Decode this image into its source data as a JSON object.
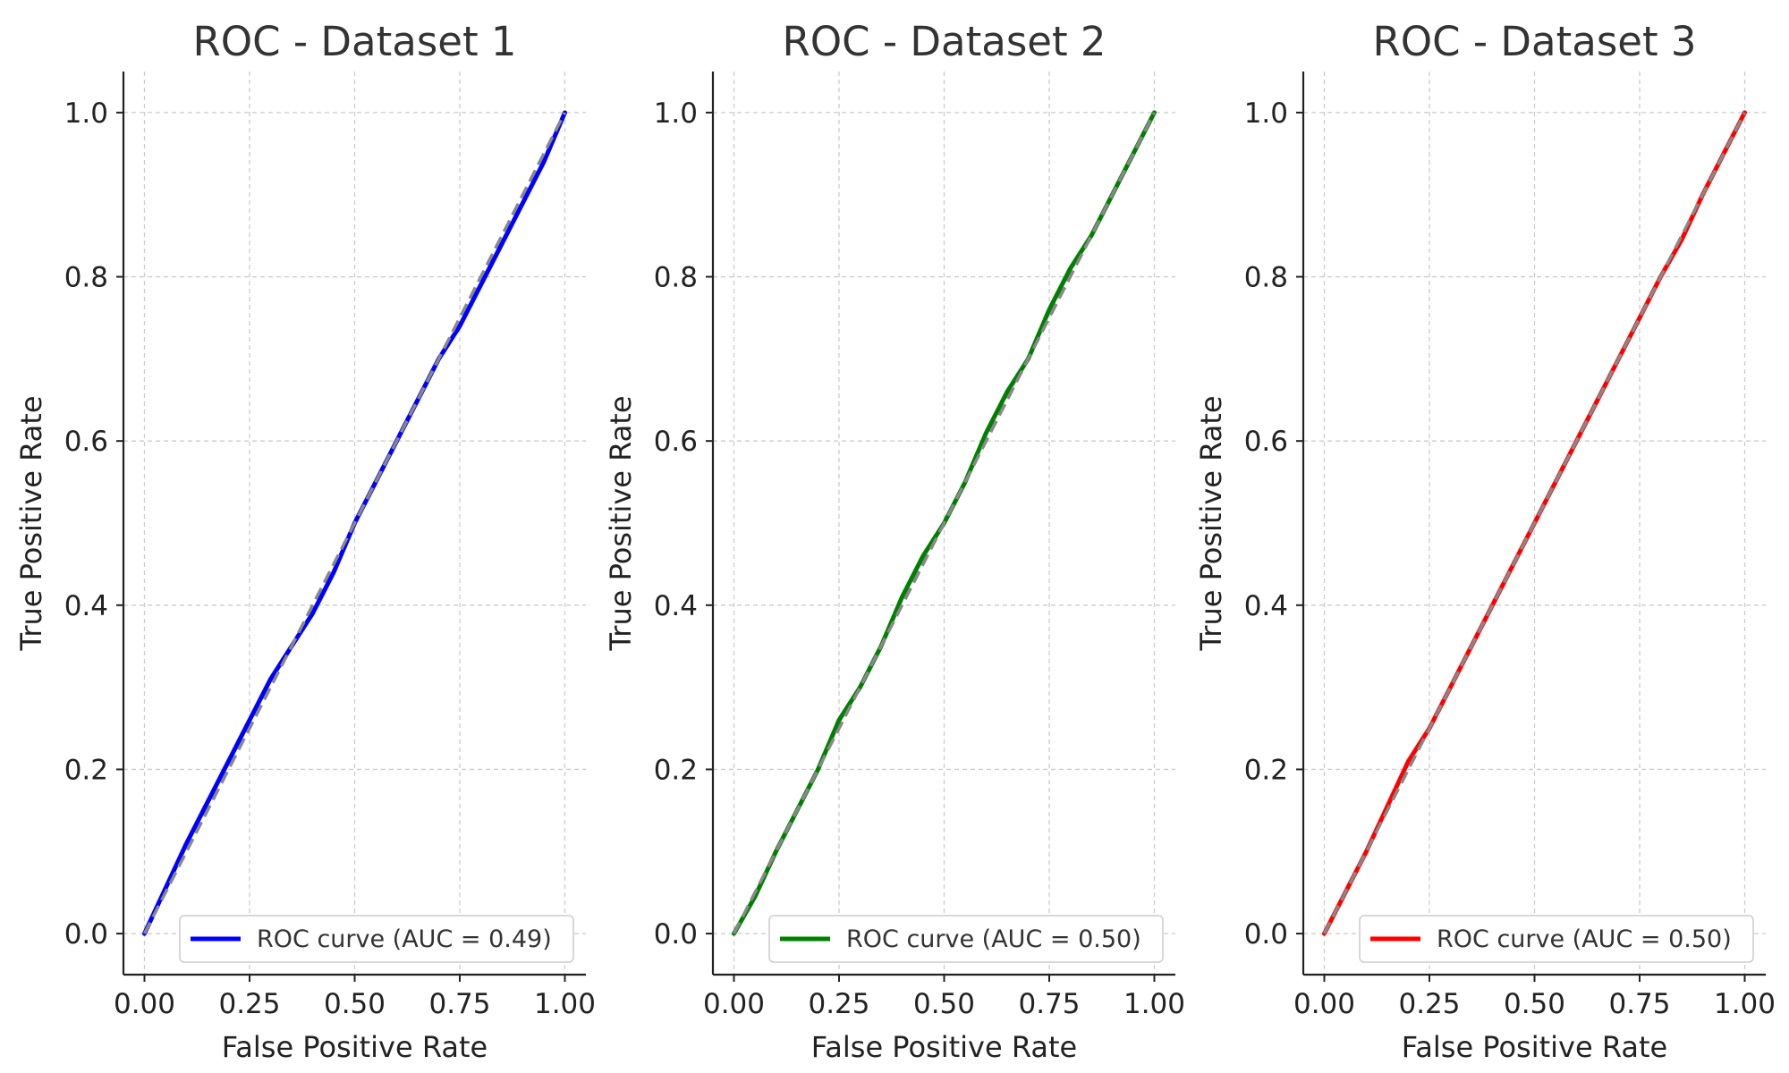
{
  "chart_data": [
    {
      "type": "line",
      "title": "ROC - Dataset 1",
      "xlabel": "False Positive Rate",
      "ylabel": "True Positive Rate",
      "xlim": [
        -0.05,
        1.05
      ],
      "ylim": [
        -0.05,
        1.05
      ],
      "xticks": [
        "0.00",
        "0.25",
        "0.50",
        "0.75",
        "1.00"
      ],
      "yticks": [
        "0.0",
        "0.2",
        "0.4",
        "0.6",
        "0.8",
        "1.0"
      ],
      "grid": true,
      "legend_position": "bottom-right",
      "series": [
        {
          "name": "ROC curve (AUC = 0.49)",
          "color": "#0000ff",
          "x": [
            0.0,
            0.05,
            0.1,
            0.15,
            0.2,
            0.25,
            0.3,
            0.35,
            0.4,
            0.45,
            0.5,
            0.55,
            0.6,
            0.65,
            0.7,
            0.75,
            0.8,
            0.85,
            0.9,
            0.95,
            1.0
          ],
          "y": [
            0.0,
            0.055,
            0.11,
            0.16,
            0.21,
            0.26,
            0.31,
            0.35,
            0.39,
            0.44,
            0.5,
            0.55,
            0.6,
            0.65,
            0.7,
            0.74,
            0.79,
            0.84,
            0.89,
            0.94,
            1.0
          ]
        },
        {
          "name": "",
          "color": "#888888",
          "dashed": true,
          "x": [
            0.0,
            1.0
          ],
          "y": [
            0.0,
            1.0
          ]
        }
      ]
    },
    {
      "type": "line",
      "title": "ROC - Dataset 2",
      "xlabel": "False Positive Rate",
      "ylabel": "True Positive Rate",
      "xlim": [
        -0.05,
        1.05
      ],
      "ylim": [
        -0.05,
        1.05
      ],
      "xticks": [
        "0.00",
        "0.25",
        "0.50",
        "0.75",
        "1.00"
      ],
      "yticks": [
        "0.0",
        "0.2",
        "0.4",
        "0.6",
        "0.8",
        "1.0"
      ],
      "grid": true,
      "legend_position": "bottom-right",
      "series": [
        {
          "name": "ROC curve (AUC = 0.50)",
          "color": "#008000",
          "x": [
            0.0,
            0.05,
            0.1,
            0.15,
            0.2,
            0.25,
            0.3,
            0.35,
            0.4,
            0.45,
            0.5,
            0.55,
            0.6,
            0.65,
            0.7,
            0.75,
            0.8,
            0.85,
            0.9,
            0.95,
            1.0
          ],
          "y": [
            0.0,
            0.045,
            0.1,
            0.15,
            0.2,
            0.26,
            0.3,
            0.35,
            0.41,
            0.46,
            0.5,
            0.55,
            0.61,
            0.66,
            0.7,
            0.76,
            0.81,
            0.85,
            0.9,
            0.95,
            1.0
          ]
        },
        {
          "name": "",
          "color": "#888888",
          "dashed": true,
          "x": [
            0.0,
            1.0
          ],
          "y": [
            0.0,
            1.0
          ]
        }
      ]
    },
    {
      "type": "line",
      "title": "ROC - Dataset 3",
      "xlabel": "False Positive Rate",
      "ylabel": "True Positive Rate",
      "xlim": [
        -0.05,
        1.05
      ],
      "ylim": [
        -0.05,
        1.05
      ],
      "xticks": [
        "0.00",
        "0.25",
        "0.50",
        "0.75",
        "1.00"
      ],
      "yticks": [
        "0.0",
        "0.2",
        "0.4",
        "0.6",
        "0.8",
        "1.0"
      ],
      "grid": true,
      "legend_position": "bottom-right",
      "series": [
        {
          "name": "ROC curve (AUC = 0.50)",
          "color": "#ff0000",
          "x": [
            0.0,
            0.05,
            0.1,
            0.15,
            0.2,
            0.25,
            0.3,
            0.35,
            0.4,
            0.45,
            0.5,
            0.55,
            0.6,
            0.65,
            0.7,
            0.75,
            0.8,
            0.85,
            0.9,
            0.95,
            1.0
          ],
          "y": [
            0.0,
            0.05,
            0.1,
            0.155,
            0.21,
            0.25,
            0.3,
            0.35,
            0.4,
            0.45,
            0.5,
            0.55,
            0.6,
            0.65,
            0.7,
            0.75,
            0.8,
            0.845,
            0.9,
            0.95,
            1.0
          ]
        },
        {
          "name": "",
          "color": "#888888",
          "dashed": true,
          "x": [
            0.0,
            1.0
          ],
          "y": [
            0.0,
            1.0
          ]
        }
      ]
    }
  ]
}
